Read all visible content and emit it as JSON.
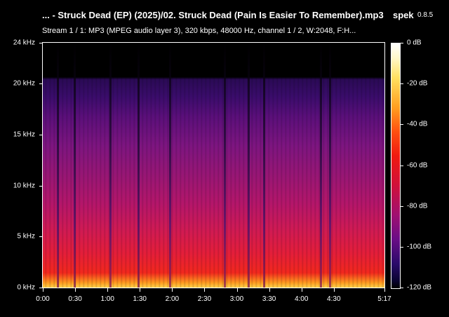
{
  "title": {
    "file": "... - Struck Dead (EP) (2025)/02. Struck Dead (Pain Is Easier To Remember).mp3",
    "app": "spek",
    "version": "0.8.5"
  },
  "stream_info": "Stream 1 / 1: MP3 (MPEG audio layer 3), 320 kbps, 48000 Hz, channel 1 / 2, W:2048, F:H...",
  "freq_axis": {
    "labels": [
      "24 kHz",
      "20 kHz",
      "15 kHz",
      "10 kHz",
      "5 kHz",
      "0 kHz"
    ],
    "values_khz": [
      24,
      20,
      15,
      10,
      5,
      0
    ],
    "range_khz": [
      0,
      24
    ]
  },
  "time_axis": {
    "labels": [
      "0:00",
      "0:30",
      "1:00",
      "1:30",
      "2:00",
      "2:30",
      "3:00",
      "3:30",
      "4:00",
      "4:30",
      "5:17"
    ],
    "values_s": [
      0,
      30,
      60,
      90,
      120,
      150,
      180,
      210,
      240,
      270,
      317
    ],
    "range_s": [
      0,
      317
    ]
  },
  "db_scale": {
    "labels": [
      "0 dB",
      "-20 dB",
      "-40 dB",
      "-60 dB",
      "-80 dB",
      "-100 dB",
      "-120 dB"
    ],
    "values_db": [
      0,
      -20,
      -40,
      -60,
      -80,
      -100,
      -120
    ],
    "range_db": [
      -120,
      0
    ]
  },
  "colors": {
    "background": "#000000",
    "text": "#ffffff"
  }
}
